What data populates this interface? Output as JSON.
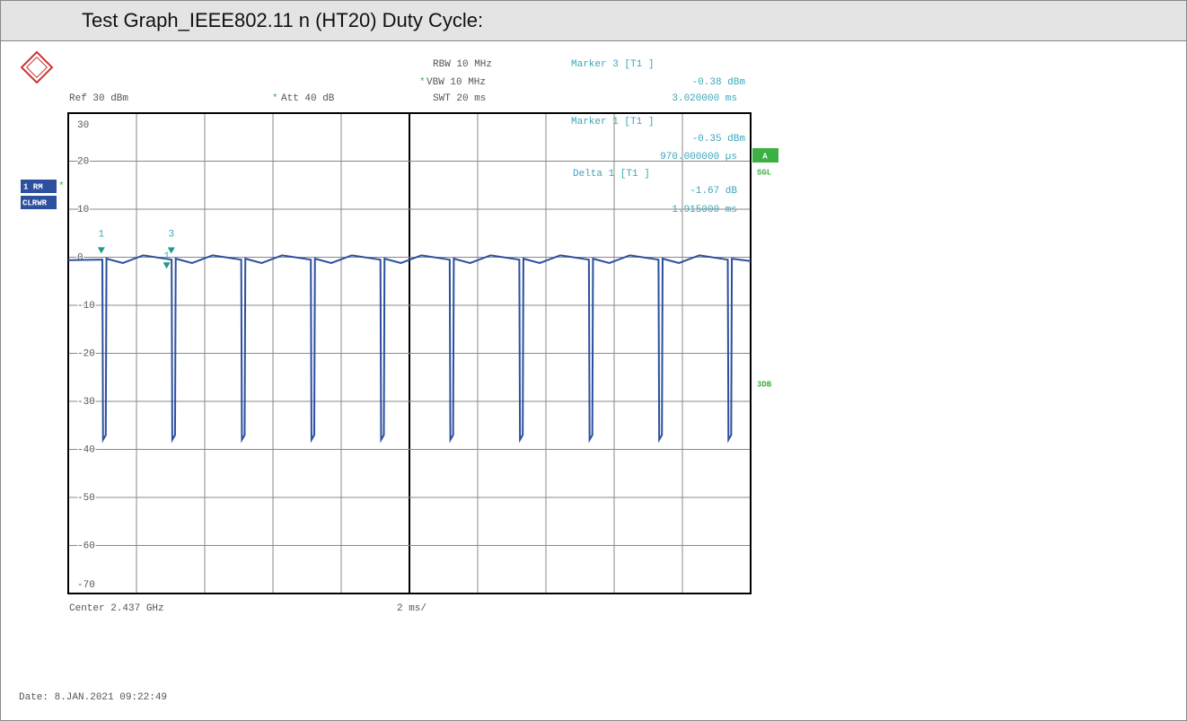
{
  "header": {
    "title": "Test Graph_IEEE802.11 n (HT20) Duty Cycle:"
  },
  "instrument": {
    "rbw": "RBW 10 MHz",
    "vbw_flag": "*",
    "vbw": "VBW 10 MHz",
    "swt": "SWT 20 ms",
    "ref": "Ref  30 dBm",
    "att_flag": "*",
    "att": "Att  40 dB",
    "trace_mode": "1 RM",
    "trace_flag": "*",
    "trace_clear": "CLRWR",
    "status_a": "A",
    "status_sgl": "SGL",
    "status_3db": "3DB",
    "center": "Center 2.437 GHz",
    "span": "2 ms/",
    "date": "Date: 8.JAN.2021  09:22:49"
  },
  "marker_readouts": [
    {
      "title": "Marker 3 [T1 ]",
      "level": "-0.38 dBm",
      "position": "3.020000 ms"
    },
    {
      "title": "Marker 1 [T1 ]",
      "level": "-0.35 dBm",
      "position": "970.000000 µs"
    },
    {
      "title": "Delta 1 [T1 ]",
      "level": "-1.67 dB",
      "position": "1.915000 ms"
    }
  ],
  "chart_data": {
    "type": "line",
    "color": "#2c4f9e",
    "xlim": [
      0,
      20
    ],
    "ylim": [
      -70,
      30
    ],
    "yticks": [
      30,
      20,
      10,
      0,
      -10,
      -20,
      -30,
      -40,
      -50,
      -60,
      -70
    ],
    "x": [
      0,
      1.0,
      1.02,
      1.1,
      1.12,
      1.6,
      2.2,
      3.03,
      3.05,
      3.13,
      3.15,
      3.63,
      4.23,
      5.07,
      5.09,
      5.17,
      5.19,
      5.67,
      6.27,
      7.11,
      7.13,
      7.21,
      7.23,
      7.71,
      8.31,
      9.15,
      9.17,
      9.25,
      9.27,
      9.75,
      10.35,
      11.18,
      11.2,
      11.28,
      11.3,
      11.78,
      12.38,
      13.22,
      13.24,
      13.32,
      13.34,
      13.82,
      14.42,
      15.26,
      15.28,
      15.36,
      15.38,
      15.86,
      16.46,
      17.3,
      17.32,
      17.4,
      17.42,
      17.9,
      18.5,
      19.33,
      19.35,
      19.43,
      19.45,
      20
    ],
    "values": [
      -0.6,
      -0.5,
      -38,
      -37,
      -0.3,
      -1.2,
      0.4,
      -0.5,
      -38,
      -37,
      -0.3,
      -1.2,
      0.4,
      -0.5,
      -38,
      -37,
      -0.3,
      -1.2,
      0.4,
      -0.5,
      -38,
      -37,
      -0.3,
      -1.2,
      0.4,
      -0.5,
      -38,
      -37,
      -0.3,
      -1.2,
      0.4,
      -0.5,
      -38,
      -37,
      -0.3,
      -1.2,
      0.4,
      -0.5,
      -38,
      -37,
      -0.3,
      -1.2,
      0.4,
      -0.5,
      -38,
      -37,
      -0.3,
      -1.2,
      0.4,
      -0.5,
      -38,
      -37,
      -0.3,
      -1.2,
      0.4,
      -0.5,
      -38,
      -37,
      -0.3,
      -0.8
    ],
    "markers": [
      {
        "label": "1",
        "x": 0.97,
        "y": -0.35
      },
      {
        "label": "3",
        "x": 3.02,
        "y": -0.38
      },
      {
        "label": "1",
        "x": 2.885,
        "y": -2.02
      }
    ]
  }
}
